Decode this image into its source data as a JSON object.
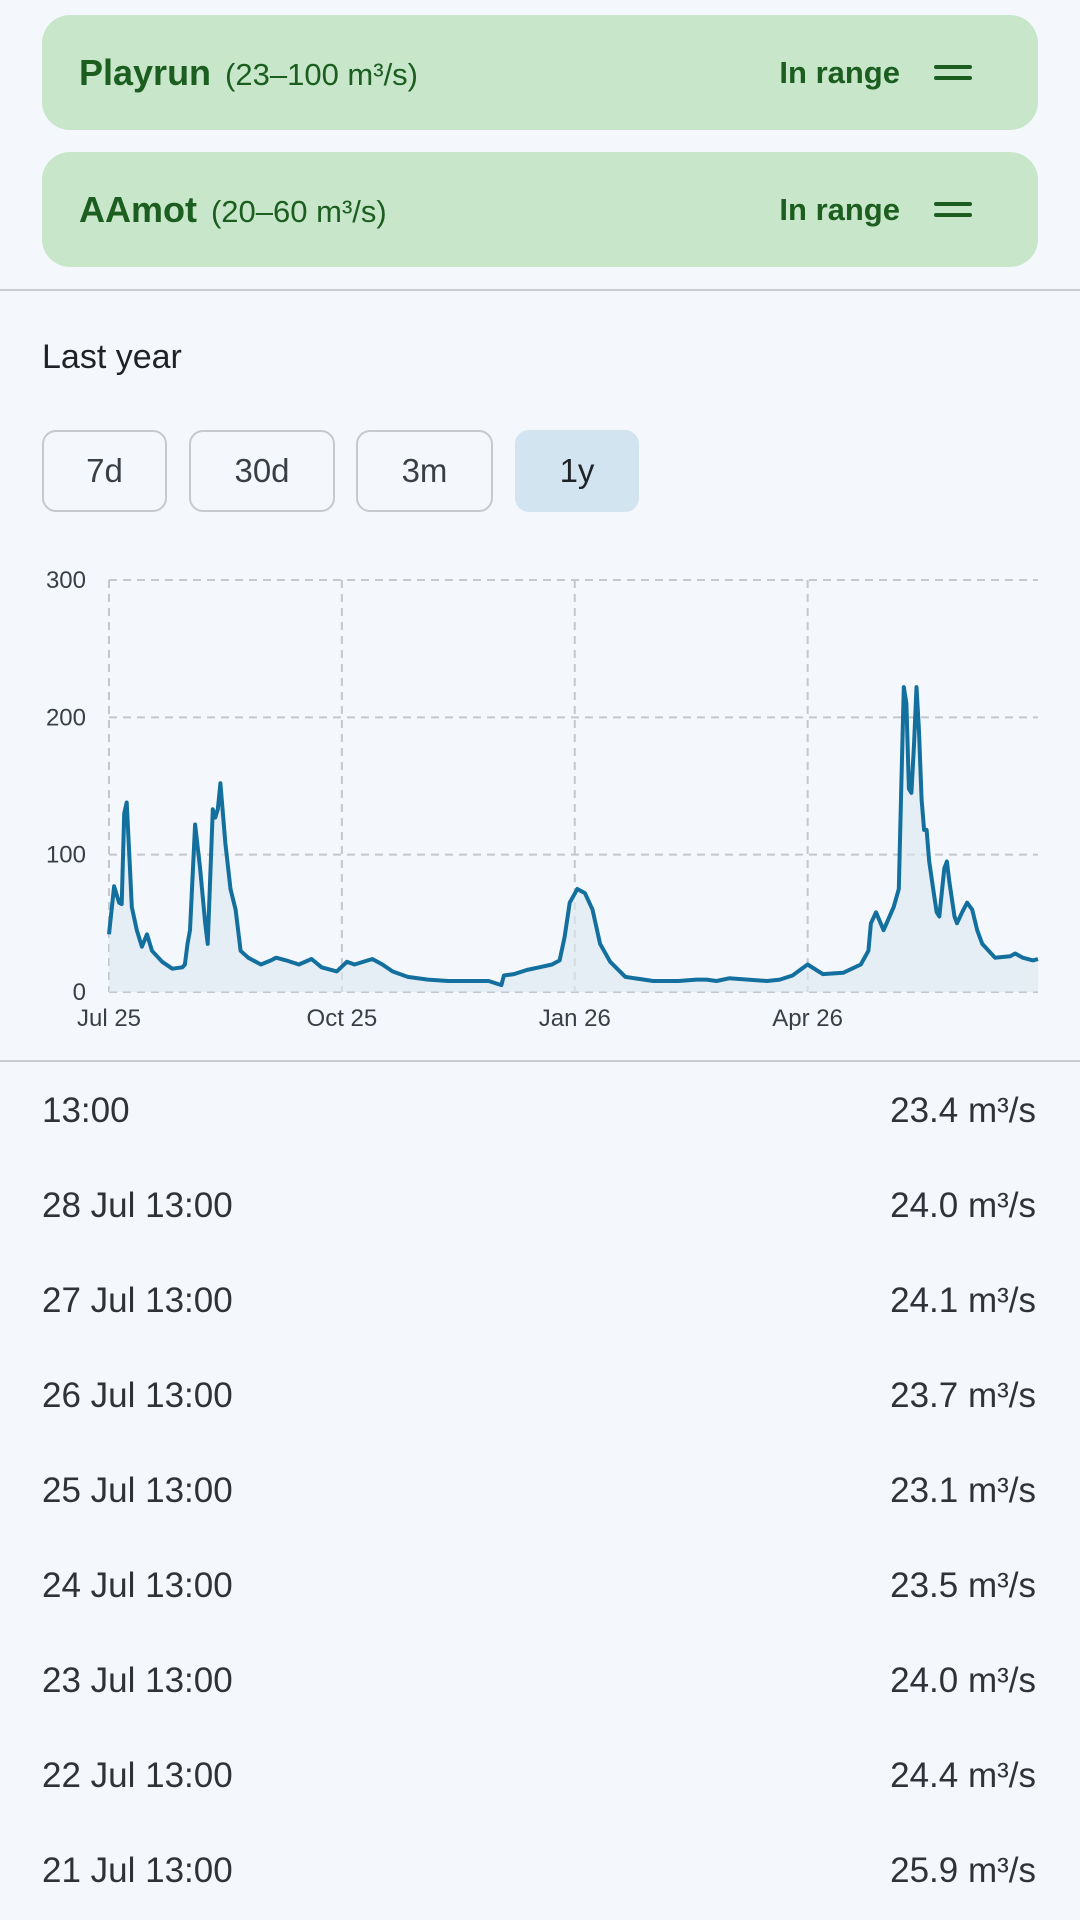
{
  "sites": [
    {
      "name": "Playrun",
      "range": "(23–100 m³/s)",
      "status": "In range"
    },
    {
      "name": "AAmot",
      "range": "(20–60 m³/s)",
      "status": "In range"
    }
  ],
  "section_title": "Last year",
  "range_buttons": [
    "7d",
    "30d",
    "3m",
    "1y"
  ],
  "selected_range": "1y",
  "colors": {
    "accent": "#136f9e",
    "card_bg": "#c8e6c9",
    "card_text": "#1b5e20",
    "button_selected": "#d3e4f1"
  },
  "chart_data": {
    "type": "line",
    "ylim": [
      0,
      300
    ],
    "yticks": [
      "0",
      "100",
      "200",
      "300"
    ],
    "xticks": [
      {
        "label": "Jul 25",
        "day": 0
      },
      {
        "label": "Oct 25",
        "day": 92
      },
      {
        "label": "Jan 26",
        "day": 184
      },
      {
        "label": "Apr 26",
        "day": 276
      }
    ],
    "xrange_days": [
      0,
      367
    ],
    "grid": true,
    "series": [
      {
        "points": [
          [
            0,
            42
          ],
          [
            2,
            77
          ],
          [
            4,
            65
          ],
          [
            5,
            64
          ],
          [
            6,
            130
          ],
          [
            7,
            138
          ],
          [
            8,
            100
          ],
          [
            9,
            62
          ],
          [
            11,
            45
          ],
          [
            13,
            33
          ],
          [
            15,
            42
          ],
          [
            17,
            30
          ],
          [
            21,
            22
          ],
          [
            25,
            17
          ],
          [
            29,
            18
          ],
          [
            30,
            20
          ],
          [
            31,
            35
          ],
          [
            32,
            45
          ],
          [
            34,
            122
          ],
          [
            36,
            90
          ],
          [
            38,
            50
          ],
          [
            39,
            35
          ],
          [
            41,
            133
          ],
          [
            42,
            127
          ],
          [
            43,
            133
          ],
          [
            44,
            152
          ],
          [
            46,
            108
          ],
          [
            48,
            75
          ],
          [
            50,
            60
          ],
          [
            52,
            30
          ],
          [
            55,
            25
          ],
          [
            60,
            20
          ],
          [
            64,
            23
          ],
          [
            66,
            25
          ],
          [
            70,
            23
          ],
          [
            75,
            20
          ],
          [
            80,
            24
          ],
          [
            84,
            18
          ],
          [
            90,
            15
          ],
          [
            94,
            22
          ],
          [
            97,
            20
          ],
          [
            104,
            24
          ],
          [
            108,
            20
          ],
          [
            112,
            15
          ],
          [
            118,
            11
          ],
          [
            126,
            9
          ],
          [
            134,
            8
          ],
          [
            145,
            8
          ],
          [
            150,
            8
          ],
          [
            155,
            5
          ],
          [
            156,
            12
          ],
          [
            160,
            13
          ],
          [
            165,
            16
          ],
          [
            170,
            18
          ],
          [
            175,
            20
          ],
          [
            178,
            23
          ],
          [
            180,
            40
          ],
          [
            182,
            65
          ],
          [
            185,
            75
          ],
          [
            188,
            72
          ],
          [
            191,
            60
          ],
          [
            194,
            35
          ],
          [
            198,
            22
          ],
          [
            204,
            11
          ],
          [
            215,
            8
          ],
          [
            225,
            8
          ],
          [
            232,
            9
          ],
          [
            236,
            9
          ],
          [
            240,
            8
          ],
          [
            245,
            10
          ],
          [
            260,
            8
          ],
          [
            265,
            9
          ],
          [
            270,
            12
          ],
          [
            276,
            20
          ],
          [
            282,
            13
          ],
          [
            290,
            14
          ],
          [
            297,
            20
          ],
          [
            300,
            30
          ],
          [
            301,
            50
          ],
          [
            303,
            58
          ],
          [
            306,
            45
          ],
          [
            310,
            62
          ],
          [
            312,
            75
          ],
          [
            313,
            150
          ],
          [
            314,
            222
          ],
          [
            315,
            210
          ],
          [
            316,
            148
          ],
          [
            317,
            145
          ],
          [
            318,
            180
          ],
          [
            319,
            222
          ],
          [
            320,
            190
          ],
          [
            321,
            140
          ],
          [
            322,
            118
          ],
          [
            323,
            118
          ],
          [
            324,
            95
          ],
          [
            326,
            70
          ],
          [
            327,
            58
          ],
          [
            328,
            55
          ],
          [
            330,
            90
          ],
          [
            331,
            95
          ],
          [
            332,
            80
          ],
          [
            334,
            55
          ],
          [
            335,
            50
          ],
          [
            337,
            58
          ],
          [
            339,
            65
          ],
          [
            341,
            60
          ],
          [
            343,
            45
          ],
          [
            345,
            35
          ],
          [
            350,
            25
          ],
          [
            356,
            26
          ],
          [
            358,
            28
          ],
          [
            361,
            25
          ],
          [
            365,
            23
          ],
          [
            367,
            24
          ]
        ]
      }
    ]
  },
  "readings": [
    {
      "time": "13:00",
      "value": "23.4 m³/s"
    },
    {
      "time": "28 Jul 13:00",
      "value": "24.0 m³/s"
    },
    {
      "time": "27 Jul 13:00",
      "value": "24.1 m³/s"
    },
    {
      "time": "26 Jul 13:00",
      "value": "23.7 m³/s"
    },
    {
      "time": "25 Jul 13:00",
      "value": "23.1 m³/s"
    },
    {
      "time": "24 Jul 13:00",
      "value": "23.5 m³/s"
    },
    {
      "time": "23 Jul 13:00",
      "value": "24.0 m³/s"
    },
    {
      "time": "22 Jul 13:00",
      "value": "24.4 m³/s"
    },
    {
      "time": "21 Jul 13:00",
      "value": "25.9 m³/s"
    }
  ]
}
